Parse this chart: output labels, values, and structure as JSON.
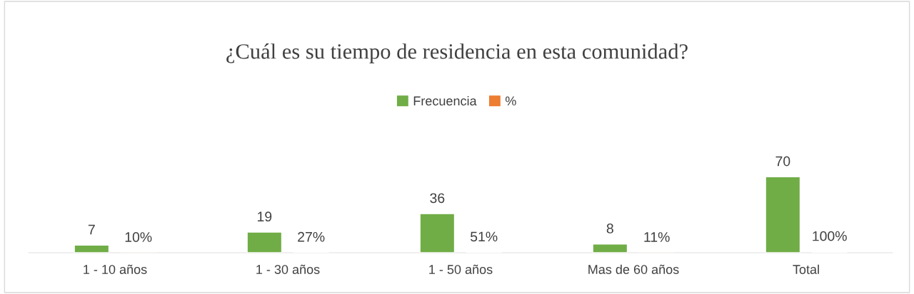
{
  "chart_data": {
    "type": "bar",
    "title": "¿Cuál es su tiempo de residencia en esta comunidad?",
    "categories": [
      "1 - 10 años",
      "1 - 30 años",
      "1 - 50 años",
      "Mas de 60 años",
      "Total"
    ],
    "series": [
      {
        "name": "Frecuencia",
        "color": "#70ad47",
        "values": [
          7,
          19,
          36,
          8,
          70
        ],
        "value_labels": [
          "7",
          "19",
          "36",
          "8",
          "70"
        ]
      },
      {
        "name": "%",
        "color": "#ed7d31",
        "values": [
          0.1,
          0.27,
          0.51,
          0.11,
          1.0
        ],
        "value_labels": [
          "10%",
          "27%",
          "51%",
          "11%",
          "100%"
        ]
      }
    ],
    "legend": "top",
    "grid": false
  }
}
